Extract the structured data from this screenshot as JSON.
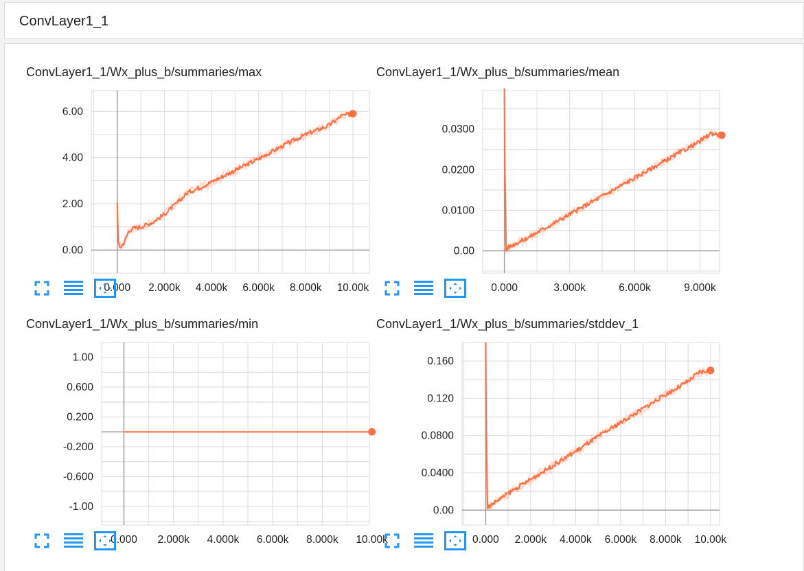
{
  "header": {
    "title": "ConvLayer1_1"
  },
  "colors": {
    "series": "#ff7043",
    "icon": "#2196f3",
    "grid": "#dddddd",
    "axis": "#9e9e9e"
  },
  "toolbar_icons": [
    "fullscreen-icon",
    "data-list-icon",
    "fit-domain-icon"
  ],
  "chart_data": [
    {
      "type": "line",
      "title": "ConvLayer1_1/Wx_plus_b/summaries/max",
      "xlim": [
        -1100,
        10700
      ],
      "ylim": [
        -1.0,
        6.9
      ],
      "xticks": [
        0,
        2000,
        4000,
        6000,
        8000,
        10000
      ],
      "xtick_labels": [
        "0.000",
        "2.000k",
        "4.000k",
        "6.000k",
        "8.000k",
        "10.00k"
      ],
      "yticks": [
        0,
        2,
        4,
        6
      ],
      "ytick_labels": [
        "0.00",
        "2.00",
        "4.00",
        "6.00"
      ],
      "series": [
        {
          "x": [
            0,
            40,
            100,
            200,
            300,
            400,
            500,
            700,
            1000,
            1500,
            2000,
            2500,
            3000,
            3500,
            4000,
            5000,
            6000,
            7000,
            8000,
            9000,
            9500,
            10000
          ],
          "y": [
            2.05,
            0.4,
            0.12,
            0.2,
            0.35,
            0.6,
            0.85,
            0.95,
            1.0,
            1.2,
            1.55,
            2.0,
            2.5,
            2.7,
            2.95,
            3.45,
            3.95,
            4.5,
            5.0,
            5.4,
            5.8,
            5.9
          ]
        }
      ],
      "grid": true
    },
    {
      "type": "line",
      "title": "ConvLayer1_1/Wx_plus_b/summaries/mean",
      "xlim": [
        -1000,
        9900
      ],
      "ylim": [
        -0.0055,
        0.0395
      ],
      "xticks": [
        0,
        3000,
        6000,
        9000
      ],
      "xtick_labels": [
        "0.000",
        "3.000k",
        "6.000k",
        "9.000k"
      ],
      "yticks": [
        0,
        0.01,
        0.02,
        0.03
      ],
      "ytick_labels": [
        "0.00",
        "0.0100",
        "0.0200",
        "0.0300"
      ],
      "series": [
        {
          "x": [
            0,
            20,
            80,
            150,
            500,
            1000,
            2000,
            3000,
            4000,
            5000,
            6000,
            7000,
            8000,
            9000,
            9500,
            10000
          ],
          "y": [
            0.04,
            0.02,
            0.0003,
            0.0008,
            0.0018,
            0.003,
            0.006,
            0.009,
            0.012,
            0.015,
            0.018,
            0.021,
            0.024,
            0.027,
            0.029,
            0.0285
          ]
        }
      ],
      "grid": true
    },
    {
      "type": "line",
      "title": "ConvLayer1_1/Wx_plus_b/summaries/min",
      "xlim": [
        -900,
        9900
      ],
      "ylim": [
        -1.25,
        1.2
      ],
      "xticks": [
        0,
        2000,
        4000,
        6000,
        8000,
        10000
      ],
      "xtick_labels": [
        "0.000",
        "2.000k",
        "4.000k",
        "6.000k",
        "8.000k",
        "10.00k"
      ],
      "yticks": [
        1.0,
        0.6,
        0.2,
        -0.2,
        -0.6,
        -1.0
      ],
      "ytick_labels": [
        "1.00",
        "0.600",
        "0.200",
        "-0.200",
        "-0.600",
        "-1.00"
      ],
      "series": [
        {
          "x": [
            0,
            10000
          ],
          "y": [
            0,
            0
          ]
        }
      ],
      "grid": true
    },
    {
      "type": "line",
      "title": "ConvLayer1_1/Wx_plus_b/summaries/stddev_1",
      "xlim": [
        -1050,
        10400
      ],
      "ylim": [
        -0.016,
        0.18
      ],
      "xticks": [
        0,
        2000,
        4000,
        6000,
        8000,
        10000
      ],
      "xtick_labels": [
        "0.000",
        "2.000k",
        "4.000k",
        "6.000k",
        "8.000k",
        "10.00k"
      ],
      "yticks": [
        0,
        0.04,
        0.08,
        0.12,
        0.16
      ],
      "ytick_labels": [
        "0.00",
        "0.0400",
        "0.0800",
        "0.120",
        "0.160"
      ],
      "series": [
        {
          "x": [
            0,
            20,
            80,
            150,
            500,
            1000,
            2000,
            3000,
            4000,
            5000,
            6000,
            7000,
            8000,
            9000,
            9500,
            10000
          ],
          "y": [
            0.18,
            0.1,
            0.001,
            0.004,
            0.01,
            0.018,
            0.033,
            0.048,
            0.063,
            0.079,
            0.094,
            0.109,
            0.124,
            0.138,
            0.148,
            0.15
          ]
        }
      ],
      "grid": true
    }
  ]
}
